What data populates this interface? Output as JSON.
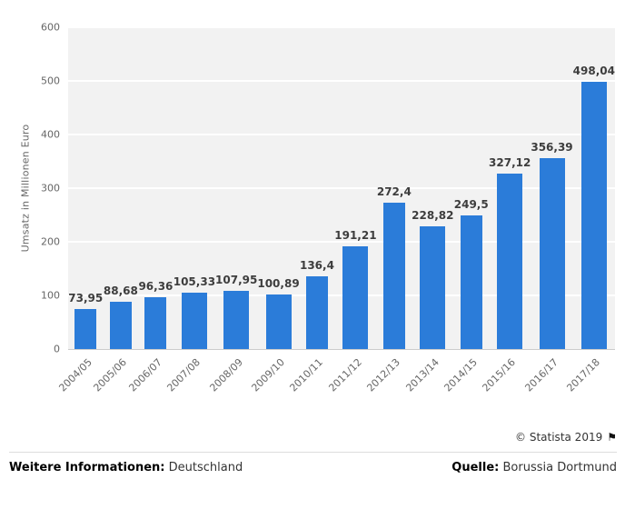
{
  "colors": {
    "bar": "#2b7cd9",
    "plot_background": "#f2f2f2",
    "gridline": "#ffffff",
    "axis_text": "#666666",
    "value_label": "#3d3d3d"
  },
  "chart_data": {
    "type": "bar",
    "categories": [
      "2004/05",
      "2005/06",
      "2006/07",
      "2007/08",
      "2008/09",
      "2009/10",
      "2010/11",
      "2011/12",
      "2012/13",
      "2013/14",
      "2014/15",
      "2015/16",
      "2016/17",
      "2017/18"
    ],
    "values": [
      73.95,
      88.68,
      96.36,
      105.33,
      107.95,
      100.89,
      136.4,
      191.21,
      272.4,
      228.82,
      249.5,
      327.12,
      356.39,
      498.04
    ],
    "value_labels": [
      "73,95",
      "88,68",
      "96,36",
      "105,33",
      "107,95",
      "100,89",
      "136,4",
      "191,21",
      "272,4",
      "228,82",
      "249,5",
      "327,12",
      "356,39",
      "498,04"
    ],
    "title": "",
    "xlabel": "",
    "ylabel": "Umsatz in Millionen Euro",
    "ylim": [
      0,
      600
    ],
    "yticks": [
      0,
      100,
      200,
      300,
      400,
      500,
      600
    ],
    "grid": true,
    "legend": false
  },
  "footer": {
    "copyright": "© Statista 2019",
    "flag_icon": "⚑",
    "info_label": "Weitere Informationen:",
    "info_value": "Deutschland",
    "source_label": "Quelle:",
    "source_value": "Borussia Dortmund"
  }
}
